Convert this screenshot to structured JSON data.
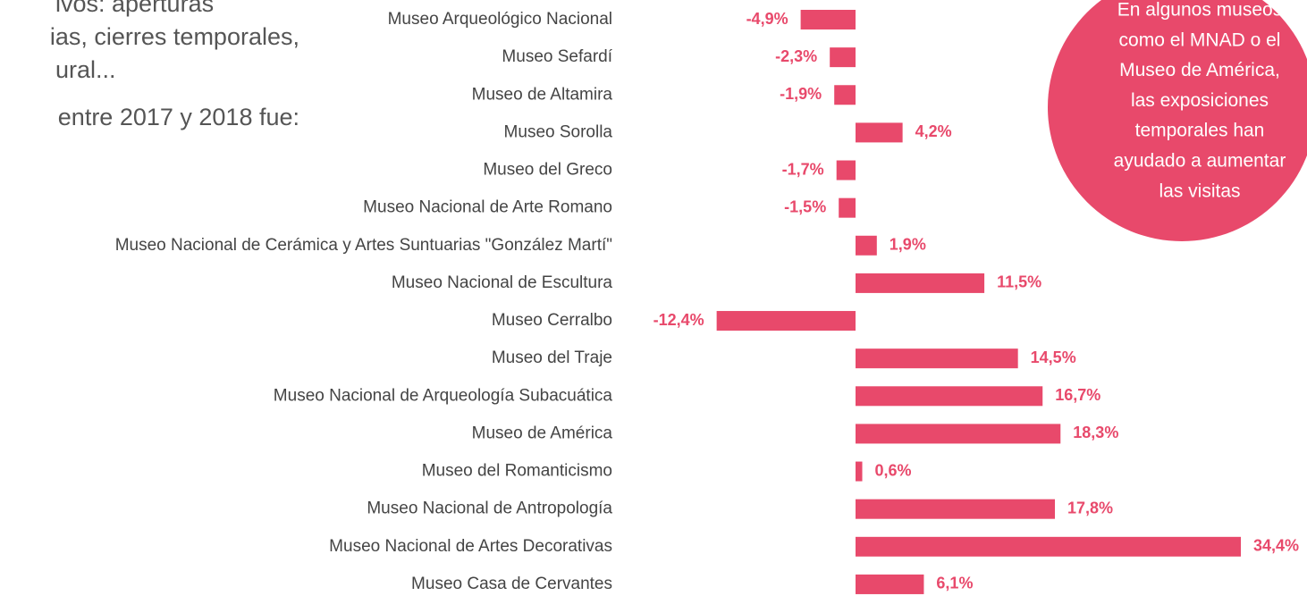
{
  "chart_data": {
    "type": "bar",
    "orientation": "horizontal",
    "color": "#e8496b",
    "intro_lines": [
      "ivos: aperturas",
      "ias, cierres temporales,",
      "ural...",
      "entre 2017 y 2018 fue:"
    ],
    "annotation_lines": [
      "En algunos museos",
      "como el MNAD o el",
      "Museo de América,",
      "las exposiciones",
      "temporales han",
      "ayudado a aumentar",
      "las visitas"
    ],
    "categories": [
      "Museo Arqueológico Nacional",
      "Museo Sefardí",
      "Museo de Altamira",
      "Museo Sorolla",
      "Museo del Greco",
      "Museo Nacional de Arte Romano",
      "Museo Nacional de Cerámica y Artes Suntuarias \"González Martí\"",
      "Museo Nacional de Escultura",
      "Museo Cerralbo",
      "Museo del Traje",
      "Museo Nacional de Arqueología Subacuática",
      "Museo de América",
      "Museo del Romanticismo",
      "Museo Nacional  de Antropología",
      "Museo Nacional de Artes Decorativas",
      "Museo Casa de Cervantes"
    ],
    "values": [
      -4.9,
      -2.3,
      -1.9,
      4.2,
      -1.7,
      -1.5,
      1.9,
      11.5,
      -12.4,
      14.5,
      16.7,
      18.3,
      0.6,
      17.8,
      34.4,
      6.1
    ],
    "value_labels": [
      "-4,9%",
      "-2,3%",
      "-1,9%",
      "4,2%",
      "-1,7%",
      "-1,5%",
      "1,9%",
      "11,5%",
      "-12,4%",
      "14,5%",
      "16,7%",
      "18,3%",
      "0,6%",
      "17,8%",
      "34,4%",
      "6,1%"
    ]
  }
}
